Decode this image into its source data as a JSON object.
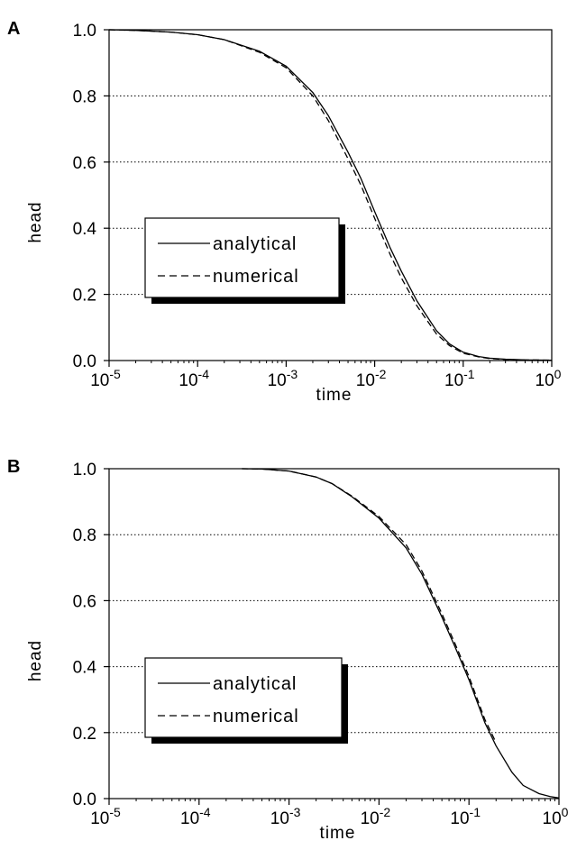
{
  "chart_data": [
    {
      "panel": "A",
      "type": "line",
      "xscale": "log",
      "xlim": [
        1e-05,
        1
      ],
      "ylim": [
        0,
        1
      ],
      "x_tick_labels": [
        {
          "base": "10",
          "exp": "-5"
        },
        {
          "base": "10",
          "exp": "-4"
        },
        {
          "base": "10",
          "exp": "-3"
        },
        {
          "base": "10",
          "exp": "-2"
        },
        {
          "base": "10",
          "exp": "-1"
        },
        {
          "base": "10",
          "exp": "0"
        }
      ],
      "y_tick_labels": [
        "0.0",
        "0.2",
        "0.4",
        "0.6",
        "0.8",
        "1.0"
      ],
      "y_ticks": [
        0,
        0.2,
        0.4,
        0.6,
        0.8,
        1.0
      ],
      "xlabel": "time",
      "ylabel": "head",
      "grid": "horizontal dotted",
      "legend_position": "center-left",
      "series": [
        {
          "name": "analytical",
          "style": "solid",
          "x": [
            1e-05,
            2e-05,
            5e-05,
            0.0001,
            0.0002,
            0.0005,
            0.001,
            0.002,
            0.003,
            0.005,
            0.007,
            0.01,
            0.015,
            0.02,
            0.03,
            0.05,
            0.07,
            0.1,
            0.15,
            0.2,
            0.3,
            0.5,
            1
          ],
          "y": [
            1.0,
            0.998,
            0.993,
            0.985,
            0.97,
            0.935,
            0.89,
            0.81,
            0.74,
            0.63,
            0.55,
            0.45,
            0.34,
            0.27,
            0.18,
            0.09,
            0.05,
            0.025,
            0.012,
            0.007,
            0.004,
            0.002,
            0.001
          ]
        },
        {
          "name": "numerical",
          "style": "dashed",
          "x": [
            1e-05,
            2e-05,
            5e-05,
            0.0001,
            0.0002,
            0.0005,
            0.001,
            0.002,
            0.003,
            0.005,
            0.007,
            0.01,
            0.015,
            0.02,
            0.03,
            0.05,
            0.07,
            0.1,
            0.15,
            0.2,
            0.3,
            0.5,
            1
          ],
          "y": [
            1.0,
            0.998,
            0.993,
            0.985,
            0.97,
            0.932,
            0.885,
            0.8,
            0.725,
            0.61,
            0.53,
            0.43,
            0.32,
            0.25,
            0.165,
            0.08,
            0.045,
            0.022,
            0.011,
            0.006,
            0.003,
            0.002,
            0.001
          ]
        }
      ]
    },
    {
      "panel": "B",
      "type": "line",
      "xscale": "log",
      "xlim": [
        1e-05,
        1
      ],
      "ylim": [
        0,
        1
      ],
      "x_tick_labels": [
        {
          "base": "10",
          "exp": "-5"
        },
        {
          "base": "10",
          "exp": "-4"
        },
        {
          "base": "10",
          "exp": "-3"
        },
        {
          "base": "10",
          "exp": "-2"
        },
        {
          "base": "10",
          "exp": "-1"
        },
        {
          "base": "10",
          "exp": "0"
        }
      ],
      "y_tick_labels": [
        "0.0",
        "0.2",
        "0.4",
        "0.6",
        "0.8",
        "1.0"
      ],
      "y_ticks": [
        0,
        0.2,
        0.4,
        0.6,
        0.8,
        1.0
      ],
      "xlabel": "time",
      "ylabel": "head",
      "grid": "horizontal dotted",
      "legend_position": "center-left",
      "series": [
        {
          "name": "analytical",
          "style": "solid",
          "x": [
            0.0003,
            0.0005,
            0.001,
            0.002,
            0.003,
            0.005,
            0.01,
            0.02,
            0.03,
            0.05,
            0.07,
            0.1,
            0.15,
            0.2,
            0.3,
            0.4,
            0.6,
            0.8,
            1
          ],
          "y": [
            1.0,
            0.999,
            0.993,
            0.975,
            0.955,
            0.915,
            0.85,
            0.76,
            0.68,
            0.55,
            0.46,
            0.36,
            0.23,
            0.16,
            0.08,
            0.04,
            0.015,
            0.006,
            0.002
          ]
        },
        {
          "name": "numerical",
          "style": "dashed",
          "x": [
            0.0003,
            0.0005,
            0.001,
            0.002,
            0.003,
            0.005,
            0.01,
            0.02,
            0.03,
            0.05,
            0.07,
            0.1,
            0.15,
            0.2
          ],
          "y": [
            1.0,
            0.999,
            0.993,
            0.975,
            0.955,
            0.917,
            0.855,
            0.77,
            0.69,
            0.56,
            0.47,
            0.37,
            0.24,
            0.17
          ]
        }
      ]
    }
  ]
}
